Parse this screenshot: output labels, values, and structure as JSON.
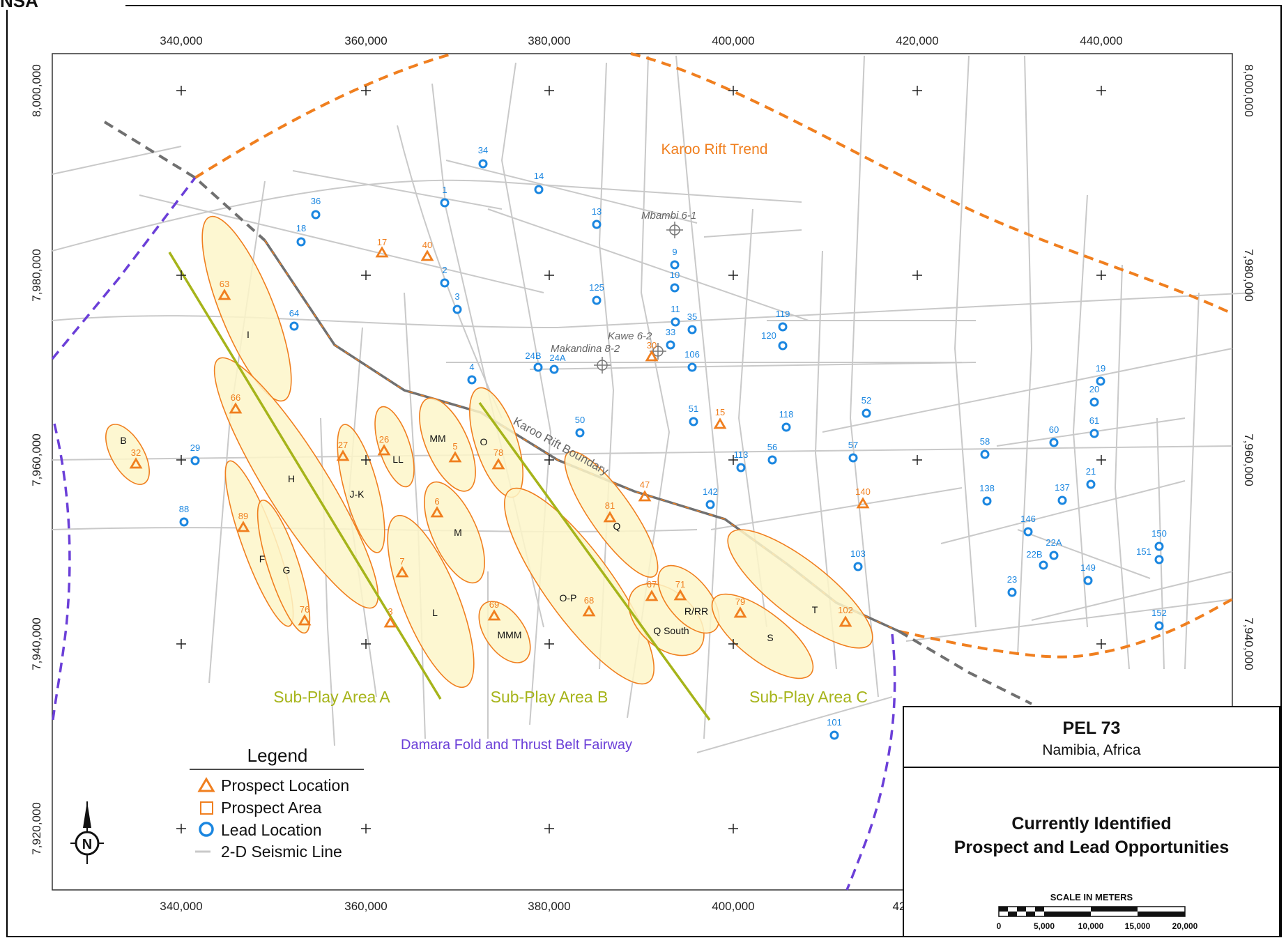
{
  "header": {
    "logo_text": "NSA"
  },
  "axes": {
    "x_ticks_top": [
      "340,000",
      "360,000",
      "380,000",
      "400,000",
      "420,000",
      "440,000"
    ],
    "x_ticks_bottom": [
      "340,000",
      "360,000",
      "380,000",
      "400,000",
      "42"
    ],
    "y_ticks_left": [
      "8,000,000",
      "7,980,000",
      "7,960,000",
      "7,940,000",
      "7,920,000"
    ],
    "y_ticks_right": [
      "8,000,000",
      "7,980,000",
      "7,960,000",
      "7,940,000"
    ]
  },
  "labels": {
    "karoo_rift_trend": "Karoo Rift Trend",
    "karoo_rift_boundary": "Karoo Rift Boundary",
    "sub_play_a": "Sub-Play Area A",
    "sub_play_b": "Sub-Play Area B",
    "sub_play_c": "Sub-Play Area C",
    "damara": "Damara Fold and Thrust Belt Fairway"
  },
  "wells": [
    {
      "name": "Mbambi 6-1"
    },
    {
      "name": "Kawe 6-2"
    },
    {
      "name": "Makandina 8-2"
    }
  ],
  "prospect_areas": [
    "B",
    "I",
    "H",
    "J-K",
    "LL",
    "MM",
    "O",
    "M",
    "F",
    "G",
    "L",
    "MMM",
    "O-P",
    "Q",
    "Q South",
    "R/RR",
    "S",
    "T"
  ],
  "prospects": [
    "17",
    "40",
    "63",
    "66",
    "32",
    "27",
    "26",
    "5",
    "78",
    "6",
    "89",
    "7",
    "76",
    "3",
    "69",
    "68",
    "81",
    "47",
    "30",
    "15",
    "140",
    "67",
    "71",
    "79",
    "102"
  ],
  "leads": [
    "34",
    "14",
    "1",
    "36",
    "13",
    "18",
    "9",
    "10",
    "2",
    "125",
    "3",
    "11",
    "35",
    "64",
    "33",
    "106",
    "119",
    "120",
    "24B",
    "24A",
    "4",
    "50",
    "51",
    "52",
    "118",
    "29",
    "113",
    "56",
    "57",
    "58",
    "60",
    "19",
    "20",
    "61",
    "142",
    "138",
    "137",
    "21",
    "88",
    "146",
    "150",
    "22A",
    "151",
    "22B",
    "103",
    "149",
    "23",
    "152",
    "101"
  ],
  "legend": {
    "title": "Legend",
    "items": [
      "Prospect Location",
      "Prospect Area",
      "Lead Location",
      "2-D Seismic Line"
    ]
  },
  "title_block": {
    "name": "PEL 73",
    "location": "Namibia, Africa",
    "subtitle_line1": "Currently Identified",
    "subtitle_line2": "Prospect and Lead Opportunities",
    "scale_title": "SCALE IN METERS",
    "scale_ticks": [
      "0",
      "5,000",
      "10,000",
      "15,000",
      "20,000"
    ]
  },
  "north_arrow": "N",
  "colors": {
    "prospect": "#f07f1f",
    "lead": "#1a86e0",
    "seismic": "#c9c9c9",
    "fault": "#707070",
    "sub_play": "#a6b41a",
    "damara": "#6b3fd8",
    "area_fill": "#fdf6c9"
  }
}
